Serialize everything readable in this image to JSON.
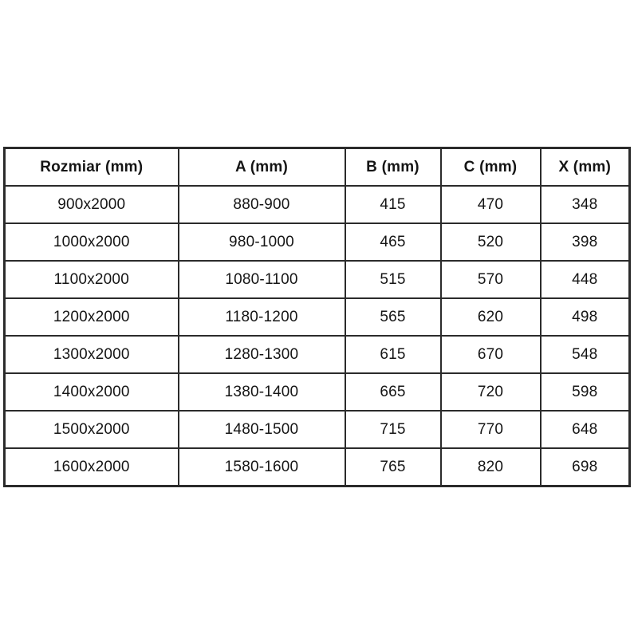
{
  "colors": {
    "background": "#ffffff",
    "border": "#2b2b2b",
    "text": "#151515"
  },
  "table": {
    "headers": [
      "Rozmiar (mm)",
      "A (mm)",
      "B (mm)",
      "C (mm)",
      "X (mm)"
    ],
    "rows": [
      [
        "900x2000",
        "880-900",
        "415",
        "470",
        "348"
      ],
      [
        "1000x2000",
        "980-1000",
        "465",
        "520",
        "398"
      ],
      [
        "1100x2000",
        "1080-1100",
        "515",
        "570",
        "448"
      ],
      [
        "1200x2000",
        "1180-1200",
        "565",
        "620",
        "498"
      ],
      [
        "1300x2000",
        "1280-1300",
        "615",
        "670",
        "548"
      ],
      [
        "1400x2000",
        "1380-1400",
        "665",
        "720",
        "598"
      ],
      [
        "1500x2000",
        "1480-1500",
        "715",
        "770",
        "648"
      ],
      [
        "1600x2000",
        "1580-1600",
        "765",
        "820",
        "698"
      ]
    ]
  }
}
